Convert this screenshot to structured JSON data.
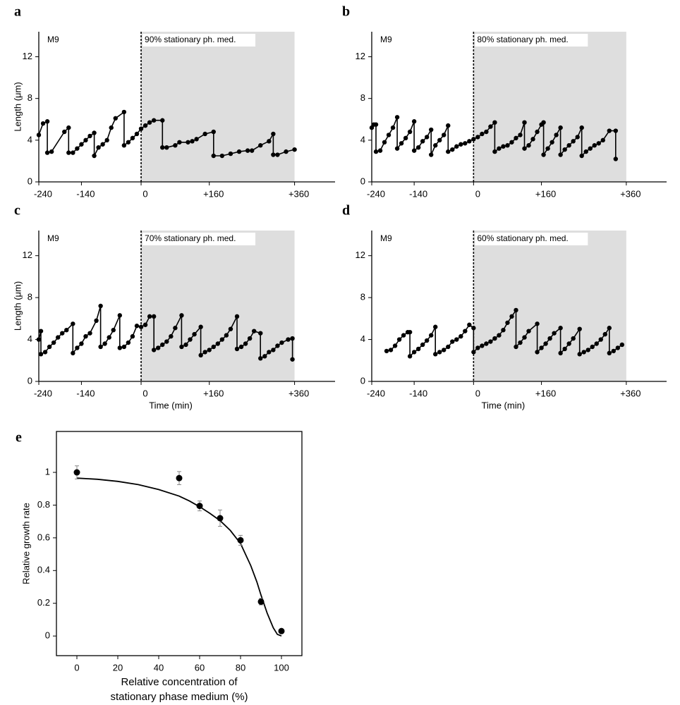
{
  "chart_data": [
    {
      "type": "line",
      "panel_label": "a",
      "annotation_left": "M9",
      "annotation_right": "90% stationary ph. med.",
      "y_label": "Length (μm)",
      "shaded_region": [
        0,
        360
      ],
      "color": "#000000",
      "xlim": [
        -240,
        455
      ],
      "ylim": [
        0,
        14.4
      ],
      "xticks": [
        -240,
        -140,
        0,
        {
          "value": 160,
          "label": "+160"
        },
        {
          "value": 360,
          "label": "+360"
        }
      ],
      "yticks": [
        0,
        4,
        8,
        12
      ],
      "x": [
        -240,
        -230,
        -220,
        -220,
        -210,
        -180,
        -170,
        -170,
        -160,
        -150,
        -140,
        -130,
        -120,
        -110,
        -110,
        -100,
        -90,
        -80,
        -70,
        -60,
        -40,
        -40,
        -30,
        -20,
        -10,
        0,
        10,
        20,
        30,
        50,
        50,
        60,
        80,
        90,
        110,
        120,
        130,
        150,
        170,
        170,
        190,
        210,
        230,
        250,
        260,
        280,
        300,
        310,
        310,
        320,
        340,
        360
      ],
      "values": [
        4.5,
        5.6,
        5.8,
        2.8,
        2.9,
        4.8,
        5.2,
        2.8,
        2.8,
        3.2,
        3.6,
        4.0,
        4.4,
        4.7,
        2.5,
        3.3,
        3.6,
        4.0,
        5.2,
        6.1,
        6.7,
        3.5,
        3.8,
        4.2,
        4.6,
        5.1,
        5.4,
        5.7,
        5.9,
        5.9,
        3.3,
        3.3,
        3.5,
        3.8,
        3.8,
        3.9,
        4.1,
        4.6,
        4.8,
        2.5,
        2.5,
        2.7,
        2.9,
        3.0,
        3.0,
        3.5,
        3.9,
        4.6,
        2.6,
        2.6,
        2.9,
        3.1
      ]
    },
    {
      "type": "line",
      "panel_label": "b",
      "annotation_left": "M9",
      "annotation_right": "80% stationary ph. med.",
      "shaded_region": [
        0,
        360
      ],
      "color": "#000000",
      "xlim": [
        -240,
        455
      ],
      "ylim": [
        0,
        14.4
      ],
      "xticks": [
        -240,
        -140,
        0,
        {
          "value": 160,
          "label": "+160"
        },
        {
          "value": 360,
          "label": "+360"
        }
      ],
      "yticks": [
        0,
        4,
        8,
        12
      ],
      "x": [
        -240,
        -235,
        -230,
        -230,
        -220,
        -210,
        -200,
        -190,
        -180,
        -180,
        -170,
        -160,
        -150,
        -140,
        -140,
        -130,
        -120,
        -110,
        -100,
        -100,
        -90,
        -80,
        -70,
        -60,
        -60,
        -50,
        -40,
        -30,
        -20,
        -10,
        0,
        10,
        20,
        30,
        40,
        50,
        50,
        60,
        70,
        80,
        90,
        100,
        110,
        120,
        120,
        130,
        140,
        150,
        160,
        165,
        165,
        175,
        185,
        195,
        205,
        205,
        215,
        225,
        235,
        245,
        255,
        255,
        265,
        275,
        285,
        295,
        305,
        320,
        335,
        335
      ],
      "values": [
        5.2,
        5.5,
        5.5,
        2.9,
        3.0,
        3.8,
        4.5,
        5.2,
        6.2,
        3.2,
        3.7,
        4.2,
        4.8,
        5.8,
        3.0,
        3.3,
        3.9,
        4.3,
        5.0,
        2.6,
        3.5,
        4.0,
        4.5,
        5.4,
        2.9,
        3.1,
        3.4,
        3.6,
        3.7,
        3.9,
        4.1,
        4.3,
        4.6,
        4.8,
        5.3,
        5.7,
        2.9,
        3.2,
        3.4,
        3.5,
        3.8,
        4.2,
        4.5,
        5.7,
        3.2,
        3.5,
        4.1,
        4.8,
        5.5,
        5.7,
        2.6,
        3.2,
        3.8,
        4.5,
        5.2,
        2.6,
        3.1,
        3.5,
        3.9,
        4.3,
        5.2,
        2.5,
        2.9,
        3.2,
        3.5,
        3.7,
        4.0,
        4.9,
        4.9,
        2.2
      ]
    },
    {
      "type": "line",
      "panel_label": "c",
      "annotation_left": "M9",
      "annotation_right": "70% stationary ph. med.",
      "y_label": "Length (μm)",
      "x_label": "Time (min)",
      "shaded_region": [
        0,
        360
      ],
      "color": "#000000",
      "xlim": [
        -240,
        455
      ],
      "ylim": [
        0,
        14.4
      ],
      "xticks": [
        -240,
        -140,
        0,
        {
          "value": 160,
          "label": "+160"
        },
        {
          "value": 360,
          "label": "+360"
        }
      ],
      "yticks": [
        0,
        4,
        8,
        12
      ],
      "x": [
        -240,
        -235,
        -235,
        -225,
        -215,
        -205,
        -195,
        -185,
        -175,
        -160,
        -160,
        -150,
        -140,
        -130,
        -120,
        -105,
        -95,
        -95,
        -85,
        -75,
        -65,
        -50,
        -50,
        -40,
        -30,
        -20,
        -10,
        0,
        10,
        20,
        30,
        30,
        40,
        50,
        60,
        70,
        80,
        95,
        95,
        105,
        115,
        125,
        140,
        140,
        150,
        160,
        170,
        180,
        190,
        200,
        210,
        225,
        225,
        235,
        245,
        255,
        265,
        280,
        280,
        290,
        300,
        310,
        320,
        330,
        345,
        355,
        355
      ],
      "values": [
        4.0,
        4.8,
        2.6,
        2.8,
        3.3,
        3.7,
        4.2,
        4.6,
        4.9,
        5.5,
        2.7,
        3.2,
        3.6,
        4.3,
        4.6,
        5.8,
        7.2,
        3.3,
        3.6,
        4.2,
        4.9,
        6.3,
        3.2,
        3.3,
        3.7,
        4.3,
        5.3,
        5.2,
        5.4,
        6.2,
        6.2,
        3.0,
        3.2,
        3.5,
        3.8,
        4.3,
        5.1,
        6.3,
        3.3,
        3.5,
        4.0,
        4.5,
        5.2,
        2.5,
        2.8,
        3.0,
        3.3,
        3.6,
        4.0,
        4.4,
        5.0,
        6.2,
        3.1,
        3.3,
        3.6,
        4.1,
        4.8,
        4.6,
        2.2,
        2.4,
        2.8,
        3.0,
        3.4,
        3.7,
        4.0,
        4.1,
        2.1
      ]
    },
    {
      "type": "line",
      "panel_label": "d",
      "annotation_left": "M9",
      "annotation_right": "60% stationary ph. med.",
      "x_label": "Time (min)",
      "shaded_region": [
        0,
        360
      ],
      "color": "#000000",
      "xlim": [
        -240,
        455
      ],
      "ylim": [
        0,
        14.4
      ],
      "xticks": [
        -240,
        -140,
        0,
        {
          "value": 160,
          "label": "+160"
        },
        {
          "value": 360,
          "label": "+360"
        }
      ],
      "yticks": [
        0,
        4,
        8,
        12
      ],
      "x": [
        -205,
        -195,
        -185,
        -175,
        -165,
        -155,
        -150,
        -150,
        -140,
        -130,
        -120,
        -110,
        -100,
        -90,
        -90,
        -80,
        -70,
        -60,
        -50,
        -40,
        -30,
        -20,
        -10,
        0,
        0,
        10,
        20,
        30,
        40,
        50,
        60,
        70,
        80,
        90,
        100,
        100,
        110,
        120,
        130,
        150,
        150,
        160,
        170,
        180,
        190,
        205,
        205,
        215,
        225,
        235,
        250,
        250,
        260,
        270,
        280,
        290,
        300,
        310,
        320,
        320,
        330,
        340,
        350
      ],
      "values": [
        2.9,
        3.0,
        3.4,
        4.0,
        4.4,
        4.7,
        4.7,
        2.4,
        2.8,
        3.1,
        3.5,
        3.9,
        4.4,
        5.2,
        2.6,
        2.8,
        3.0,
        3.3,
        3.8,
        4.0,
        4.3,
        4.8,
        5.4,
        5.1,
        2.8,
        3.2,
        3.4,
        3.6,
        3.8,
        4.1,
        4.4,
        4.9,
        5.6,
        6.2,
        6.8,
        3.3,
        3.7,
        4.2,
        4.8,
        5.5,
        2.8,
        3.2,
        3.6,
        4.1,
        4.6,
        5.1,
        2.7,
        3.1,
        3.6,
        4.1,
        5.0,
        2.6,
        2.8,
        3.0,
        3.3,
        3.6,
        4.0,
        4.5,
        5.1,
        2.7,
        2.9,
        3.2,
        3.5
      ]
    },
    {
      "type": "scatter",
      "panel_label": "e",
      "y_label": "Relative growth rate",
      "x_label": [
        "Relative concentration of",
        "stationary phase medium (%)"
      ],
      "color": "#000000",
      "error_color": "#888888",
      "xlim": [
        -10,
        110
      ],
      "ylim": [
        -0.12,
        1.25
      ],
      "xticks": [
        0,
        20,
        40,
        60,
        80,
        100
      ],
      "yticks": [
        0,
        0.2,
        0.4,
        0.6,
        0.8,
        1
      ],
      "x": [
        0,
        50,
        60,
        70,
        80,
        90,
        100
      ],
      "values": [
        1.0,
        0.965,
        0.795,
        0.72,
        0.585,
        0.21,
        0.03
      ],
      "errors": [
        0.04,
        0.04,
        0.03,
        0.05,
        0.03,
        0.02,
        0.01
      ],
      "fit": {
        "x": [
          0,
          10,
          20,
          30,
          40,
          50,
          55,
          60,
          65,
          70,
          75,
          80,
          85,
          88,
          90,
          93,
          96,
          98,
          100
        ],
        "values": [
          0.965,
          0.958,
          0.945,
          0.925,
          0.895,
          0.855,
          0.825,
          0.79,
          0.75,
          0.705,
          0.645,
          0.565,
          0.43,
          0.33,
          0.25,
          0.14,
          0.05,
          0.01,
          0.0
        ]
      }
    }
  ]
}
